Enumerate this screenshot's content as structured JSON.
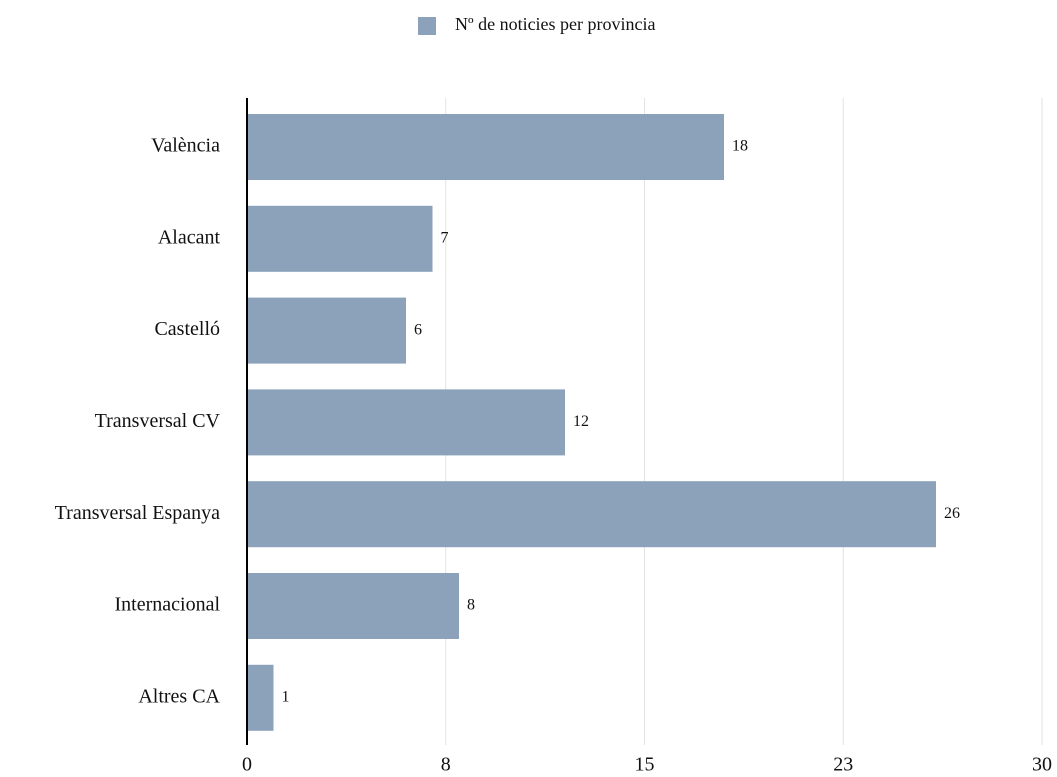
{
  "chart_data": {
    "type": "bar",
    "orientation": "horizontal",
    "legend": "Nº de noticies per provincia",
    "categories": [
      "València",
      "Alacant",
      "Castelló",
      "Transversal CV",
      "Transversal Espanya",
      "Internacional",
      "Altres CA"
    ],
    "values": [
      18,
      7,
      6,
      12,
      26,
      8,
      1
    ],
    "color": "#8ca2bb",
    "xlim": [
      0,
      30
    ],
    "xticks": [
      0,
      {
        "value": 7.5,
        "label": "8"
      },
      15,
      {
        "value": 22.5,
        "label": "23"
      },
      30
    ],
    "grid": true
  }
}
